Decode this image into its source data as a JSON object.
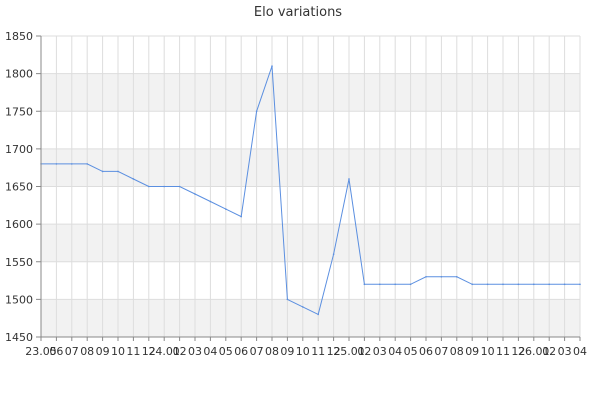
{
  "chart_data": {
    "type": "line",
    "title": "Elo variations",
    "xlabel": "",
    "ylabel": "",
    "ylim": [
      1450,
      1850
    ],
    "yticks": [
      1450,
      1500,
      1550,
      1600,
      1650,
      1700,
      1750,
      1800,
      1850
    ],
    "grid": true,
    "legend": "none",
    "x_tick_labels": [
      "23.05",
      "06",
      "07",
      "08",
      "09",
      "10",
      "11",
      "12",
      "24.01",
      "02",
      "03",
      "04",
      "05",
      "06",
      "07",
      "08",
      "09",
      "10",
      "11",
      "12",
      "25.01",
      "02",
      "03",
      "04",
      "05",
      "06",
      "07",
      "08",
      "09",
      "10",
      "11",
      "12",
      "26.01",
      "02",
      "03",
      "04"
    ],
    "series": [
      {
        "values": [
          1680,
          1680,
          1680,
          1680,
          1670,
          1670,
          1660,
          1650,
          1650,
          1650,
          1640,
          1630,
          1620,
          1610,
          1750,
          1810,
          1500,
          1490,
          1480,
          1560,
          1660,
          1520,
          1520,
          1520,
          1520,
          1530,
          1530,
          1530,
          1520,
          1520,
          1520,
          1520,
          1520,
          1520,
          1520,
          1520
        ]
      }
    ],
    "colors": {
      "line": "#5b8fe0",
      "band": "#f2f2f2",
      "grid": "#dddddd",
      "axis": "#888888",
      "text": "#333333"
    }
  }
}
